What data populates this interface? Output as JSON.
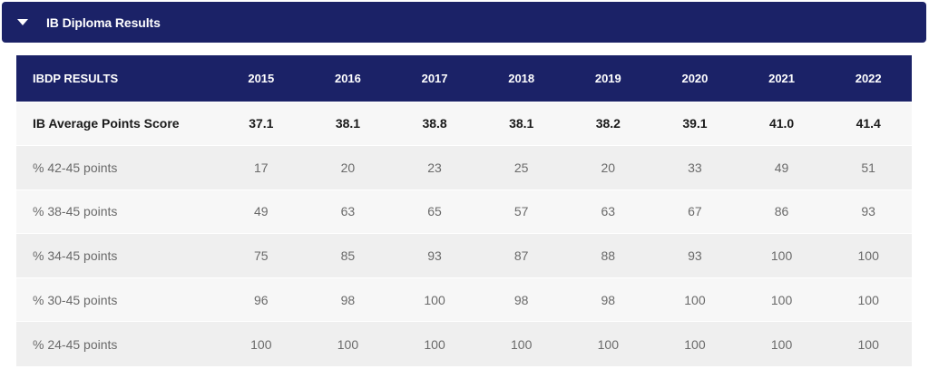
{
  "accordion": {
    "title": "IB Diploma Results",
    "icon": "caret-down-icon",
    "expanded": true
  },
  "colors": {
    "header_bg": "#1b2267",
    "row_light": "#f7f7f7",
    "row_dark": "#efefef"
  },
  "table": {
    "headers": [
      "IBDP RESULTS",
      "2015",
      "2016",
      "2017",
      "2018",
      "2019",
      "2020",
      "2021",
      "2022"
    ],
    "rows": [
      {
        "label": "IB Average Points Score",
        "values": [
          "37.1",
          "38.1",
          "38.8",
          "38.1",
          "38.2",
          "39.1",
          "41.0",
          "41.4"
        ],
        "bold": true
      },
      {
        "label": "% 42-45 points",
        "values": [
          "17",
          "20",
          "23",
          "25",
          "20",
          "33",
          "49",
          "51"
        ]
      },
      {
        "label": "% 38-45 points",
        "values": [
          "49",
          "63",
          "65",
          "57",
          "63",
          "67",
          "86",
          "93"
        ]
      },
      {
        "label": "% 34-45 points",
        "values": [
          "75",
          "85",
          "93",
          "87",
          "88",
          "93",
          "100",
          "100"
        ]
      },
      {
        "label": "% 30-45 points",
        "values": [
          "96",
          "98",
          "100",
          "98",
          "98",
          "100",
          "100",
          "100"
        ]
      },
      {
        "label": "% 24-45 points",
        "values": [
          "100",
          "100",
          "100",
          "100",
          "100",
          "100",
          "100",
          "100"
        ]
      }
    ]
  }
}
